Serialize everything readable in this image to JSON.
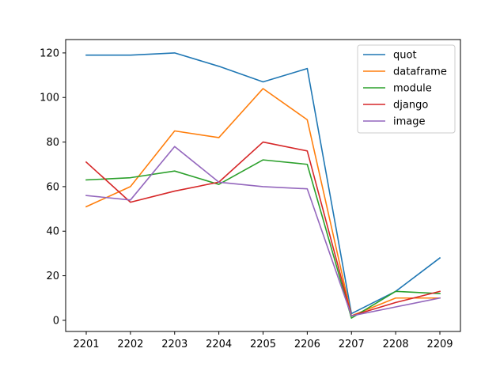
{
  "chart_data": {
    "type": "line",
    "title": "",
    "xlabel": "",
    "ylabel": "",
    "categories": [
      "2201",
      "2202",
      "2203",
      "2204",
      "2205",
      "2206",
      "2207",
      "2208",
      "2209"
    ],
    "ylim": [
      -5,
      126
    ],
    "yticks": [
      0,
      20,
      40,
      60,
      80,
      100,
      120
    ],
    "grid": false,
    "legend_position": "top-right",
    "series": [
      {
        "name": "quot",
        "color": "#1f77b4",
        "values": [
          119,
          119,
          120,
          114,
          107,
          113,
          3,
          13,
          28
        ]
      },
      {
        "name": "dataframe",
        "color": "#ff7f0e",
        "values": [
          51,
          60,
          85,
          82,
          104,
          90,
          2,
          10,
          10
        ]
      },
      {
        "name": "module",
        "color": "#2ca02c",
        "values": [
          63,
          64,
          67,
          61,
          72,
          70,
          1,
          13,
          12
        ]
      },
      {
        "name": "django",
        "color": "#d62728",
        "values": [
          71,
          53,
          58,
          62,
          80,
          76,
          2,
          8,
          13
        ]
      },
      {
        "name": "image",
        "color": "#9467bd",
        "values": [
          56,
          54,
          78,
          62,
          60,
          59,
          2,
          6,
          10
        ]
      }
    ]
  }
}
